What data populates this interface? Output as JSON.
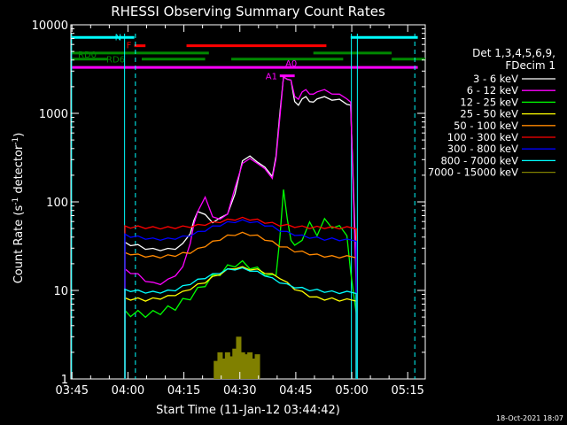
{
  "chart_data": {
    "type": "line",
    "title": "RHESSI Observing Summary Count Rates",
    "xlabel": "Start Time (11-Jan-12 03:44:42)",
    "ylabel": "Count Rate (s⁻¹ detector⁻¹)",
    "ylabel_main": "Count Rate (s",
    "ylabel_sup1": "-1",
    "ylabel_mid": " detector",
    "ylabel_sup2": "-1",
    "ylabel_end": ")",
    "yscale": "log",
    "xlim": [
      0,
      95
    ],
    "ylim": [
      1,
      10000
    ],
    "x_unit": "minutes since 03:44:42",
    "x_ticks": [
      {
        "value": 0.3,
        "label": "03:45"
      },
      {
        "value": 15.3,
        "label": "04:00"
      },
      {
        "value": 30.3,
        "label": "04:15"
      },
      {
        "value": 45.3,
        "label": "04:30"
      },
      {
        "value": 60.3,
        "label": "04:45"
      },
      {
        "value": 75.3,
        "label": "05:00"
      },
      {
        "value": 90.3,
        "label": "05:15"
      }
    ],
    "y_ticks": [
      {
        "value": 1,
        "label": "1"
      },
      {
        "value": 10,
        "label": "10"
      },
      {
        "value": 100,
        "label": "100"
      },
      {
        "value": 1000,
        "label": "1000"
      },
      {
        "value": 10000,
        "label": "10000"
      }
    ],
    "legend": {
      "header1": "Det 1,3,4,5,6,9,",
      "header2": "FDecim 1",
      "position": "right"
    },
    "timestamp": "18-Oct-2021 18:07",
    "series": [
      {
        "name": "3 - 6 keV",
        "color": "#ffffff",
        "x": [
          14.5,
          16,
          18,
          20,
          22,
          24,
          26,
          28,
          30,
          32,
          33,
          34,
          36,
          38,
          40,
          42,
          44,
          46,
          48,
          50,
          52,
          54,
          55,
          56,
          57,
          58,
          59,
          60,
          61,
          62,
          63,
          64,
          65,
          66,
          68,
          70,
          72,
          74,
          75,
          76.5
        ],
        "y": [
          34,
          33,
          32,
          30,
          29,
          29,
          29,
          30,
          33,
          45,
          60,
          80,
          70,
          60,
          64,
          75,
          120,
          300,
          320,
          290,
          240,
          200,
          320,
          1000,
          2500,
          2500,
          2300,
          1400,
          1200,
          1500,
          1500,
          1400,
          1300,
          1500,
          1500,
          1450,
          1400,
          1300,
          1200,
          17
        ]
      },
      {
        "name": "6 - 12 keV",
        "color": "#ff00ff",
        "x": [
          14.5,
          16,
          18,
          20,
          22,
          24,
          26,
          28,
          30,
          32,
          33,
          34,
          36,
          38,
          40,
          42,
          44,
          46,
          48,
          50,
          52,
          54,
          55,
          56,
          57,
          58,
          59,
          60,
          61,
          62,
          63,
          64,
          65,
          66,
          68,
          70,
          72,
          74,
          75,
          76.5
        ],
        "y": [
          17,
          16,
          15,
          13,
          12,
          12,
          13,
          15,
          18,
          35,
          55,
          80,
          110,
          70,
          62,
          75,
          140,
          280,
          300,
          280,
          230,
          190,
          300,
          900,
          2500,
          2500,
          2300,
          1600,
          1400,
          1800,
          1800,
          1700,
          1600,
          1800,
          1800,
          1700,
          1600,
          1500,
          1300,
          11
        ]
      },
      {
        "name": "12 - 25 keV",
        "color": "#00ff00",
        "x": [
          14.5,
          16,
          18,
          20,
          22,
          24,
          26,
          28,
          30,
          32,
          34,
          36,
          38,
          40,
          42,
          44,
          46,
          48,
          50,
          52,
          54,
          55,
          56,
          57,
          58,
          59,
          60,
          62,
          64,
          66,
          68,
          70,
          72,
          74,
          75,
          76.5
        ],
        "y": [
          5.5,
          5.5,
          5.5,
          5.4,
          5.5,
          5.8,
          6.2,
          6.5,
          7.5,
          8.5,
          10,
          12,
          14,
          16,
          18,
          20,
          20,
          19,
          17,
          16,
          14,
          16,
          35,
          150,
          60,
          40,
          30,
          40,
          55,
          45,
          60,
          55,
          50,
          45,
          15,
          6
        ]
      },
      {
        "name": "25 - 50 keV",
        "color": "#ffff00",
        "x": [
          14.5,
          16,
          18,
          20,
          22,
          24,
          26,
          28,
          30,
          32,
          34,
          36,
          38,
          40,
          42,
          44,
          46,
          48,
          50,
          52,
          54,
          56,
          58,
          60,
          62,
          64,
          66,
          68,
          70,
          72,
          74,
          76.5
        ],
        "y": [
          8,
          8,
          8,
          7.8,
          8,
          8.2,
          8.5,
          9,
          9.5,
          10.5,
          11.5,
          12.5,
          14,
          15.5,
          17,
          18,
          18,
          17.5,
          17,
          16,
          15,
          14,
          12,
          10.5,
          9.5,
          8.7,
          8.2,
          8,
          8,
          7.8,
          7.8,
          7.8
        ]
      },
      {
        "name": "50 - 100 keV",
        "color": "#ff8800",
        "x": [
          14.5,
          16,
          18,
          20,
          22,
          24,
          26,
          28,
          30,
          32,
          34,
          36,
          38,
          40,
          42,
          44,
          46,
          48,
          50,
          52,
          54,
          56,
          58,
          60,
          62,
          64,
          66,
          68,
          70,
          72,
          74,
          76.5
        ],
        "y": [
          26,
          26,
          25,
          24.5,
          24,
          24,
          24.5,
          25,
          26,
          27,
          29,
          32,
          35,
          38,
          41,
          43,
          44,
          43,
          41,
          38,
          35,
          32,
          30,
          28,
          27,
          26,
          25,
          24.5,
          24,
          24,
          24,
          24
        ]
      },
      {
        "name": "100 - 300 keV",
        "color": "#ff0000",
        "x": [
          14.5,
          16,
          18,
          20,
          22,
          24,
          26,
          28,
          30,
          32,
          34,
          36,
          38,
          40,
          42,
          44,
          46,
          48,
          50,
          52,
          54,
          56,
          58,
          60,
          62,
          64,
          66,
          68,
          70,
          72,
          74,
          76.5
        ],
        "y": [
          52,
          52,
          52,
          51.5,
          51,
          51,
          51,
          51.5,
          52,
          53,
          54,
          56,
          58,
          60,
          62,
          64,
          65,
          64,
          62,
          59,
          57,
          55,
          54,
          53,
          52,
          51.5,
          51.5,
          51.5,
          51,
          51,
          51,
          51
        ]
      },
      {
        "name": "300 - 800 keV",
        "color": "#0000ff",
        "x": [
          14.5,
          16,
          18,
          20,
          22,
          24,
          26,
          28,
          30,
          32,
          34,
          36,
          38,
          40,
          42,
          44,
          46,
          48,
          50,
          52,
          54,
          56,
          58,
          60,
          62,
          64,
          66,
          68,
          70,
          72,
          74,
          76.5
        ],
        "y": [
          42,
          41,
          40,
          39,
          38,
          38,
          38,
          39,
          40,
          42,
          45,
          48,
          52,
          55,
          58,
          60,
          61,
          60,
          58,
          55,
          52,
          48,
          45,
          43,
          41,
          40,
          39,
          38,
          38,
          37.5,
          37,
          37
        ]
      },
      {
        "name": "800 - 7000 keV",
        "color": "#00ffff",
        "x": [
          14.5,
          16,
          18,
          20,
          22,
          24,
          26,
          28,
          30,
          32,
          34,
          36,
          38,
          40,
          42,
          44,
          46,
          48,
          50,
          52,
          54,
          56,
          58,
          60,
          62,
          64,
          66,
          68,
          70,
          72,
          74,
          76.5
        ],
        "y": [
          10,
          10,
          9.8,
          9.6,
          9.5,
          9.6,
          9.8,
          10.2,
          11,
          12,
          13,
          14,
          15,
          16,
          17,
          17.5,
          17.5,
          17,
          16,
          15,
          13.5,
          12.5,
          11.5,
          11,
          10.5,
          10.2,
          10,
          9.8,
          9.6,
          9.5,
          9.5,
          9.5
        ]
      },
      {
        "name": "7000 - 15000 keV",
        "color": "#808000",
        "x": [
          39,
          40,
          41,
          42,
          43,
          44,
          45,
          46,
          47,
          48,
          49,
          50
        ],
        "y": [
          1.6,
          2,
          1.7,
          2,
          1.8,
          2.2,
          3,
          2,
          1.9,
          2,
          1.7,
          1.9
        ]
      }
    ],
    "annotations": [
      {
        "label": "N",
        "color": "#00ffff",
        "x_start": 0.3,
        "x_end": 17,
        "level": 7200
      },
      {
        "label": "",
        "color": "#00ffff",
        "x_start": 75,
        "x_end": 93,
        "level": 7200
      },
      {
        "label": "F",
        "color": "#ff0000",
        "x_start": 17,
        "x_end": 20,
        "level": 5800
      },
      {
        "label": "",
        "color": "#ff0000",
        "x_start": 31,
        "x_end": 68.5,
        "level": 5800
      },
      {
        "label": "RD0",
        "color": "#008800",
        "x_start": 0.3,
        "x_end": 37,
        "level": 4800
      },
      {
        "label": "",
        "color": "#008800",
        "x_start": 65,
        "x_end": 86,
        "level": 4800
      },
      {
        "label": "RD6",
        "color": "#008800",
        "x_start": 0.3,
        "x_end": 10,
        "level": 4100
      },
      {
        "label": "",
        "color": "#008800",
        "x_start": 19,
        "x_end": 36,
        "level": 4100
      },
      {
        "label": "",
        "color": "#008800",
        "x_start": 43,
        "x_end": 73,
        "level": 4100
      },
      {
        "label": "",
        "color": "#008800",
        "x_start": 86,
        "x_end": 95,
        "level": 4100
      },
      {
        "label": "A0",
        "color": "#ff00ff",
        "x_start": 0.3,
        "x_end": 93,
        "level": 3300
      },
      {
        "label": "A1",
        "color": "#ff00ff",
        "x_start": 56,
        "x_end": 60,
        "level": 2650
      }
    ],
    "vertical_lines": [
      {
        "x": 14.4,
        "color": "#00ffff",
        "style": "solid"
      },
      {
        "x": 17.3,
        "color": "#00ffff",
        "style": "dashed"
      },
      {
        "x": 75.2,
        "color": "#00ffff",
        "style": "solid"
      },
      {
        "x": 76.8,
        "color": "#00ffff",
        "style": "solid"
      },
      {
        "x": 92.2,
        "color": "#00ffff",
        "style": "dashed"
      },
      {
        "x": 0.2,
        "color": "#00ffff",
        "style": "solid"
      }
    ]
  }
}
